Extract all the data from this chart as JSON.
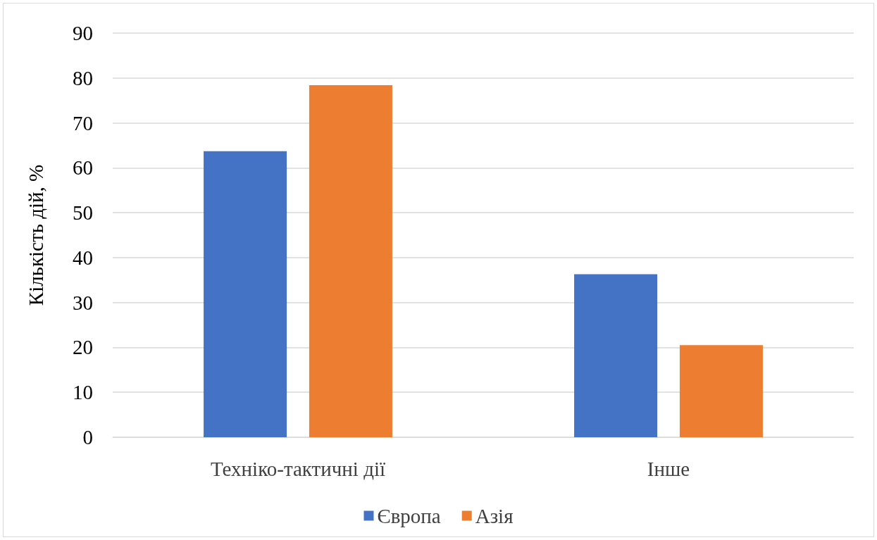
{
  "chart_data": {
    "type": "bar",
    "ylabel": "Кількість дій, %",
    "categories": [
      "Техніко-тактичні дії",
      "Інше"
    ],
    "series": [
      {
        "name": "Європа",
        "color": "#4472c4",
        "values": [
          63.7,
          36.3
        ]
      },
      {
        "name": "Азія",
        "color": "#ed7d31",
        "values": [
          78.4,
          20.5
        ]
      }
    ],
    "ylim": [
      0,
      90
    ],
    "yticks": [
      0,
      10,
      20,
      30,
      40,
      50,
      60,
      70,
      80,
      90
    ],
    "grid": "y",
    "legend": "bottom"
  }
}
